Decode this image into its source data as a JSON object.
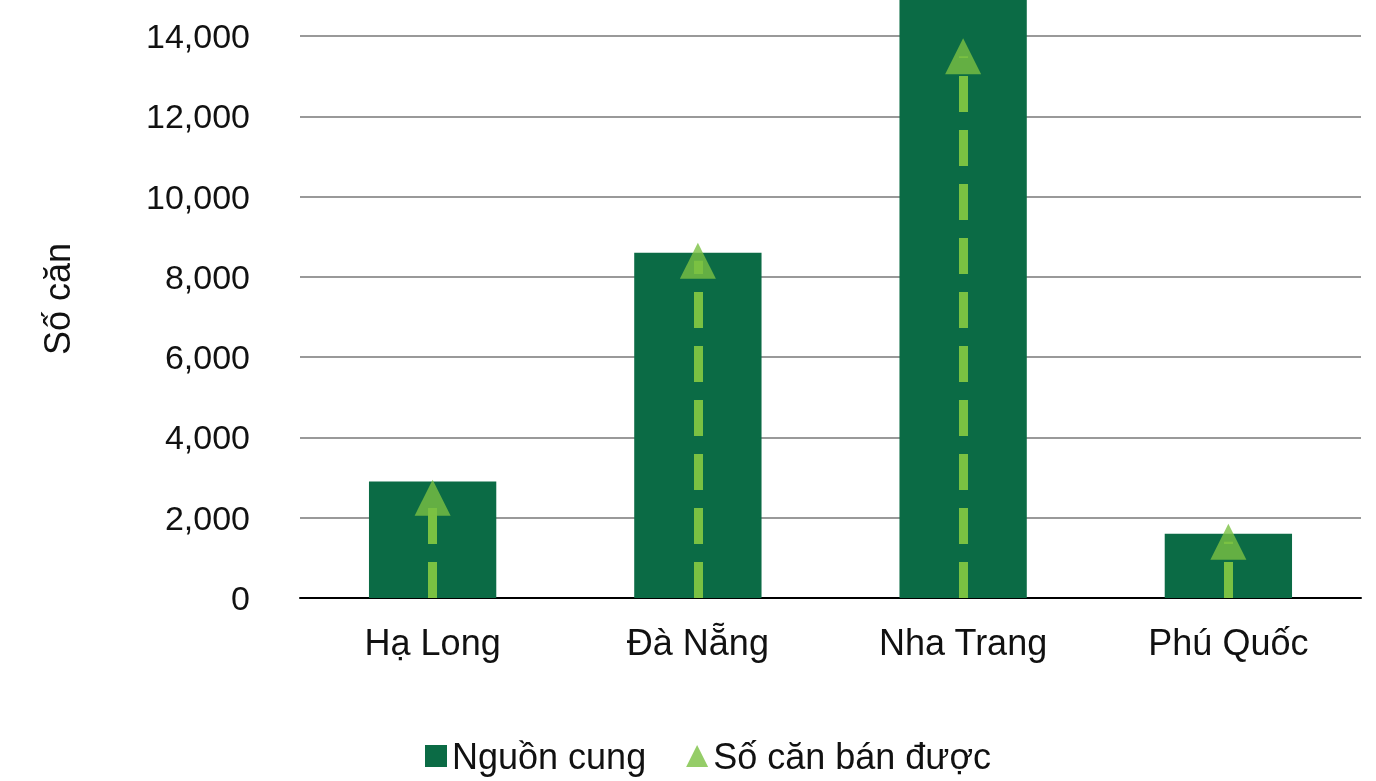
{
  "chart_data": {
    "type": "bar",
    "ylabel": "Số căn",
    "categories": [
      "Hạ Long",
      "Đà Nẵng",
      "Nha Trang",
      "Phú Quốc"
    ],
    "series": [
      {
        "name": "Nguồn cung",
        "color": "#0b6b45",
        "values": [
          2900,
          8600,
          14900,
          1600
        ]
      },
      {
        "name": "Số căn bán được",
        "type": "lollipop",
        "color": "#7ac142",
        "marker": "triangle",
        "line_style": "dashed",
        "values": [
          2500,
          8400,
          13500,
          1400
        ]
      }
    ],
    "ylim": [
      0,
      14900
    ],
    "yticks": [
      {
        "value": 0,
        "label": "0"
      },
      {
        "value": 2000,
        "label": "2,000"
      },
      {
        "value": 4000,
        "label": "4,000"
      },
      {
        "value": 6000,
        "label": "6,000"
      },
      {
        "value": 8000,
        "label": "8,000"
      },
      {
        "value": 10000,
        "label": "10,000"
      },
      {
        "value": 12000,
        "label": "12,000"
      },
      {
        "value": 14000,
        "label": "14,000"
      }
    ],
    "grid": "y",
    "legend": "bottom"
  }
}
